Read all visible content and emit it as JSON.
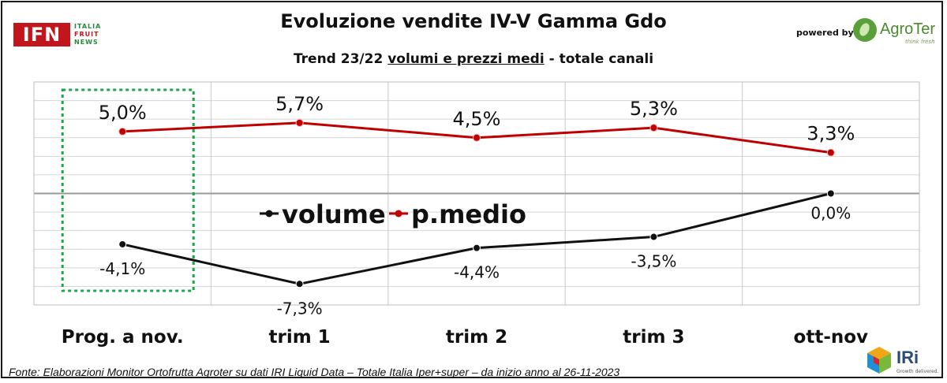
{
  "header": {
    "title": "Evoluzione vendite IV-V Gamma Gdo",
    "subtitle_pre": "Trend 23/22 ",
    "subtitle_underlined": "volumi e prezzi medi",
    "subtitle_post": " - totale canali",
    "powered_by": "powered by"
  },
  "logos": {
    "ifn_mark": "IFN",
    "ifn_line1": "ITALIA",
    "ifn_line2": "FRUIT",
    "ifn_line3": "NEWS",
    "agroter_name": "AgroTer",
    "agroter_tagline": "think fresh",
    "iri_name": "IRi",
    "iri_tagline": "Growth delivered."
  },
  "footer": {
    "source": "Fonte: Elaborazioni Monitor Ortofrutta Agroter su dati IRI Liquid Data – Totale Italia Iper+super –  da inizio anno al 26-11-2023"
  },
  "colors": {
    "volume": "#111111",
    "prezzo": "#c00000",
    "highlight": "#1aa64a"
  },
  "chart_data": {
    "type": "line",
    "categories": [
      "Prog. a nov.",
      "trim 1",
      "trim 2",
      "trim 3",
      "ott-nov"
    ],
    "series": [
      {
        "name": "volume",
        "values": [
          -4.1,
          -7.3,
          -4.4,
          -3.5,
          0.0
        ],
        "labels": [
          "-4,1%",
          "-7,3%",
          "-4,4%",
          "-3,5%",
          "0,0%"
        ]
      },
      {
        "name": "p.medio",
        "values": [
          5.0,
          5.7,
          4.5,
          5.3,
          3.3
        ],
        "labels": [
          "5,0%",
          "5,7%",
          "4,5%",
          "5,3%",
          "3,3%"
        ]
      }
    ],
    "ylim": [
      -9,
      9
    ],
    "grid": true,
    "legend": "center",
    "highlighted_category": "Prog. a nov."
  }
}
